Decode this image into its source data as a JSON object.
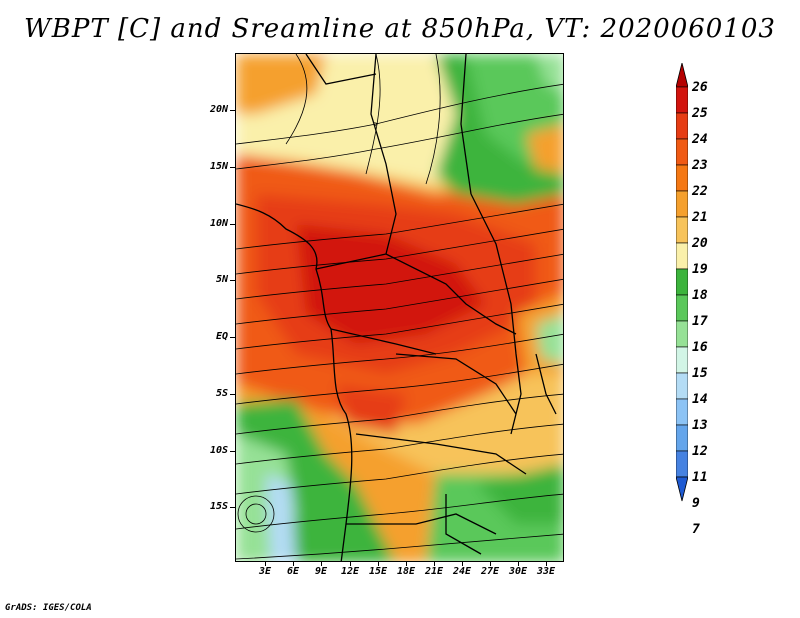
{
  "title": "WBPT [C] and Sreamline at 850hPa, VT: 2020060103",
  "credit": "GrADS: IGES/COLA",
  "map": {
    "lat_labels": [
      "20N",
      "15N",
      "10N",
      "5N",
      "EQ",
      "5S",
      "10S",
      "15S"
    ],
    "lon_labels": [
      "3E",
      "6E",
      "9E",
      "12E",
      "15E",
      "18E",
      "21E",
      "24E",
      "27E",
      "30E",
      "33E"
    ]
  },
  "colorbar": {
    "labels": [
      "26",
      "25",
      "24",
      "23",
      "22",
      "21",
      "20",
      "19",
      "18",
      "17",
      "16",
      "15",
      "14",
      "13",
      "12",
      "11",
      "9",
      "7"
    ],
    "colors": [
      "#b40000",
      "#d2140e",
      "#e63c14",
      "#f05a14",
      "#f57814",
      "#f5a02d",
      "#f7c35a",
      "#faf0aa",
      "#3cb43c",
      "#5ac85a",
      "#96e196",
      "#d2f5e6",
      "#b4dcf5",
      "#8cc3f5",
      "#64a5eb",
      "#4682e1",
      "#1e5ad2"
    ]
  }
}
